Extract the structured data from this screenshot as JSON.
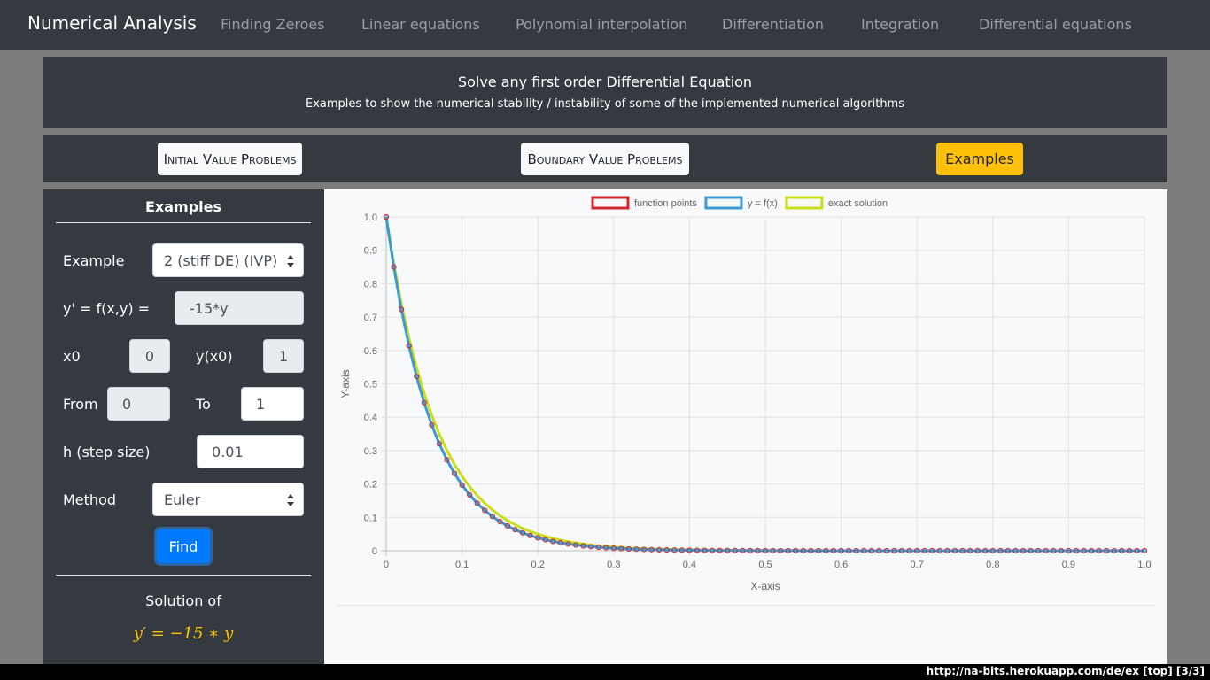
{
  "navbar": {
    "brand": "Numerical Analysis",
    "links": [
      "Finding Zeroes",
      "Linear equations",
      "Polynomial interpolation",
      "Differentiation",
      "Integration",
      "Differential equations"
    ]
  },
  "header": {
    "title": "Solve any first order Differential Equation",
    "subtitle": "Examples to show the numerical stability / instability of some of the implemented numerical algorithms"
  },
  "tabs": {
    "ivp": "Initial Value Problems",
    "bvp": "Boundary Value Problems",
    "examples": "Examples"
  },
  "form": {
    "heading": "Examples",
    "example_label": "Example",
    "example_value": "2 (stiff DE) (IVP)",
    "fxy_label": "y' = f(x,y) =",
    "fxy_value": "-15*y",
    "x0_label": "x0",
    "x0_value": "0",
    "yx0_label": "y(x0)",
    "yx0_value": "1",
    "from_label": "From",
    "from_value": "0",
    "to_label": "To",
    "to_value": "1",
    "h_label": "h (step size)",
    "h_value": "0.01",
    "method_label": "Method",
    "method_value": "Euler",
    "find_label": "Find"
  },
  "solution": {
    "title": "Solution of",
    "equation": "y′ = −15 ∗ y"
  },
  "colors": {
    "function_points": "#d0262e",
    "euler_line": "#3d9ad1",
    "exact_line": "#cbde1c",
    "accent": "#ffc107",
    "primary": "#007bff"
  },
  "chart_data": {
    "type": "line",
    "xlabel": "X-axis",
    "ylabel": "Y-axis",
    "xlim": [
      0,
      1
    ],
    "ylim": [
      0,
      1
    ],
    "xticks": [
      "0",
      "0.1",
      "0.2",
      "0.3",
      "0.4",
      "0.5",
      "0.6",
      "0.7",
      "0.8",
      "0.9",
      "1.0"
    ],
    "yticks": [
      "0",
      "0.1",
      "0.2",
      "0.3",
      "0.4",
      "0.5",
      "0.6",
      "0.7",
      "0.8",
      "0.9",
      "1.0"
    ],
    "grid": true,
    "legend_position": "top",
    "series": [
      {
        "name": "function points",
        "kind": "points",
        "x_start": 0,
        "x_end": 1,
        "x_step": 0.01,
        "y": [
          1.0,
          0.85,
          0.7225,
          0.6141,
          0.522,
          0.4437,
          0.3771,
          0.3206,
          0.2725,
          0.2316,
          0.1969,
          0.1673,
          0.1422,
          0.1209,
          0.1028,
          0.0874,
          0.0743,
          0.0631,
          0.0536,
          0.0456,
          0.0388,
          0.0329,
          0.028,
          0.0238,
          0.0202,
          0.0172,
          0.0146,
          0.0124,
          0.0106,
          0.009,
          0.0076,
          0.0065,
          0.0055,
          0.0047,
          0.004,
          0.0034,
          0.0029,
          0.0024,
          0.0021,
          0.0018,
          0.0015,
          0.0013,
          0.0011,
          0.0009,
          0.0008,
          0.0007,
          0.0006,
          0.0005,
          0.0004,
          0.0003,
          0.0003,
          0.0002,
          0.0002,
          0.0002,
          0.0002,
          0.0001,
          0.0001,
          0.0001,
          0.0001,
          0.0001,
          0.0001,
          0.0001,
          0.0,
          0.0,
          0.0,
          0.0,
          0.0,
          0.0,
          0.0,
          0.0,
          0.0,
          0.0,
          0.0,
          0.0,
          0.0,
          0.0,
          0.0,
          0.0,
          0.0,
          0.0,
          0.0,
          0.0,
          0.0,
          0.0,
          0.0,
          0.0,
          0.0,
          0.0,
          0.0,
          0.0,
          0.0,
          0.0,
          0.0,
          0.0,
          0.0,
          0.0,
          0.0,
          0.0,
          0.0,
          0.0,
          0.0
        ]
      },
      {
        "name": "y = f(x)",
        "kind": "line",
        "same_as": "function points"
      },
      {
        "name": "exact solution",
        "kind": "line",
        "x_start": 0,
        "x_end": 1,
        "x_step": 0.01,
        "y": [
          1.0,
          0.8607,
          0.7408,
          0.6376,
          0.5488,
          0.4724,
          0.4066,
          0.3499,
          0.3012,
          0.2592,
          0.2231,
          0.192,
          0.1653,
          0.1423,
          0.1225,
          0.1054,
          0.0907,
          0.0781,
          0.0672,
          0.0578,
          0.0498,
          0.0429,
          0.0369,
          0.0317,
          0.0273,
          0.0235,
          0.0202,
          0.0174,
          0.015,
          0.0129,
          0.0111,
          0.0096,
          0.0082,
          0.0071,
          0.0061,
          0.0052,
          0.0045,
          0.0039,
          0.0033,
          0.0029,
          0.0025,
          0.0021,
          0.0018,
          0.0016,
          0.0014,
          0.0012,
          0.001,
          0.0009,
          0.0007,
          0.0006,
          0.0006,
          0.0005,
          0.0004,
          0.0004,
          0.0003,
          0.0003,
          0.0002,
          0.0002,
          0.0002,
          0.0001,
          0.0001,
          0.0001,
          0.0001,
          0.0001,
          0.0001,
          0.0001,
          0.0,
          0.0,
          0.0,
          0.0,
          0.0,
          0.0,
          0.0,
          0.0,
          0.0,
          0.0,
          0.0,
          0.0,
          0.0,
          0.0,
          0.0,
          0.0,
          0.0,
          0.0,
          0.0,
          0.0,
          0.0,
          0.0,
          0.0,
          0.0,
          0.0,
          0.0,
          0.0,
          0.0,
          0.0,
          0.0,
          0.0,
          0.0,
          0.0,
          0.0,
          0.0
        ]
      }
    ]
  },
  "statusbar": {
    "text": "http://na-bits.herokuapp.com/de/ex  [top]  [3/3]"
  }
}
